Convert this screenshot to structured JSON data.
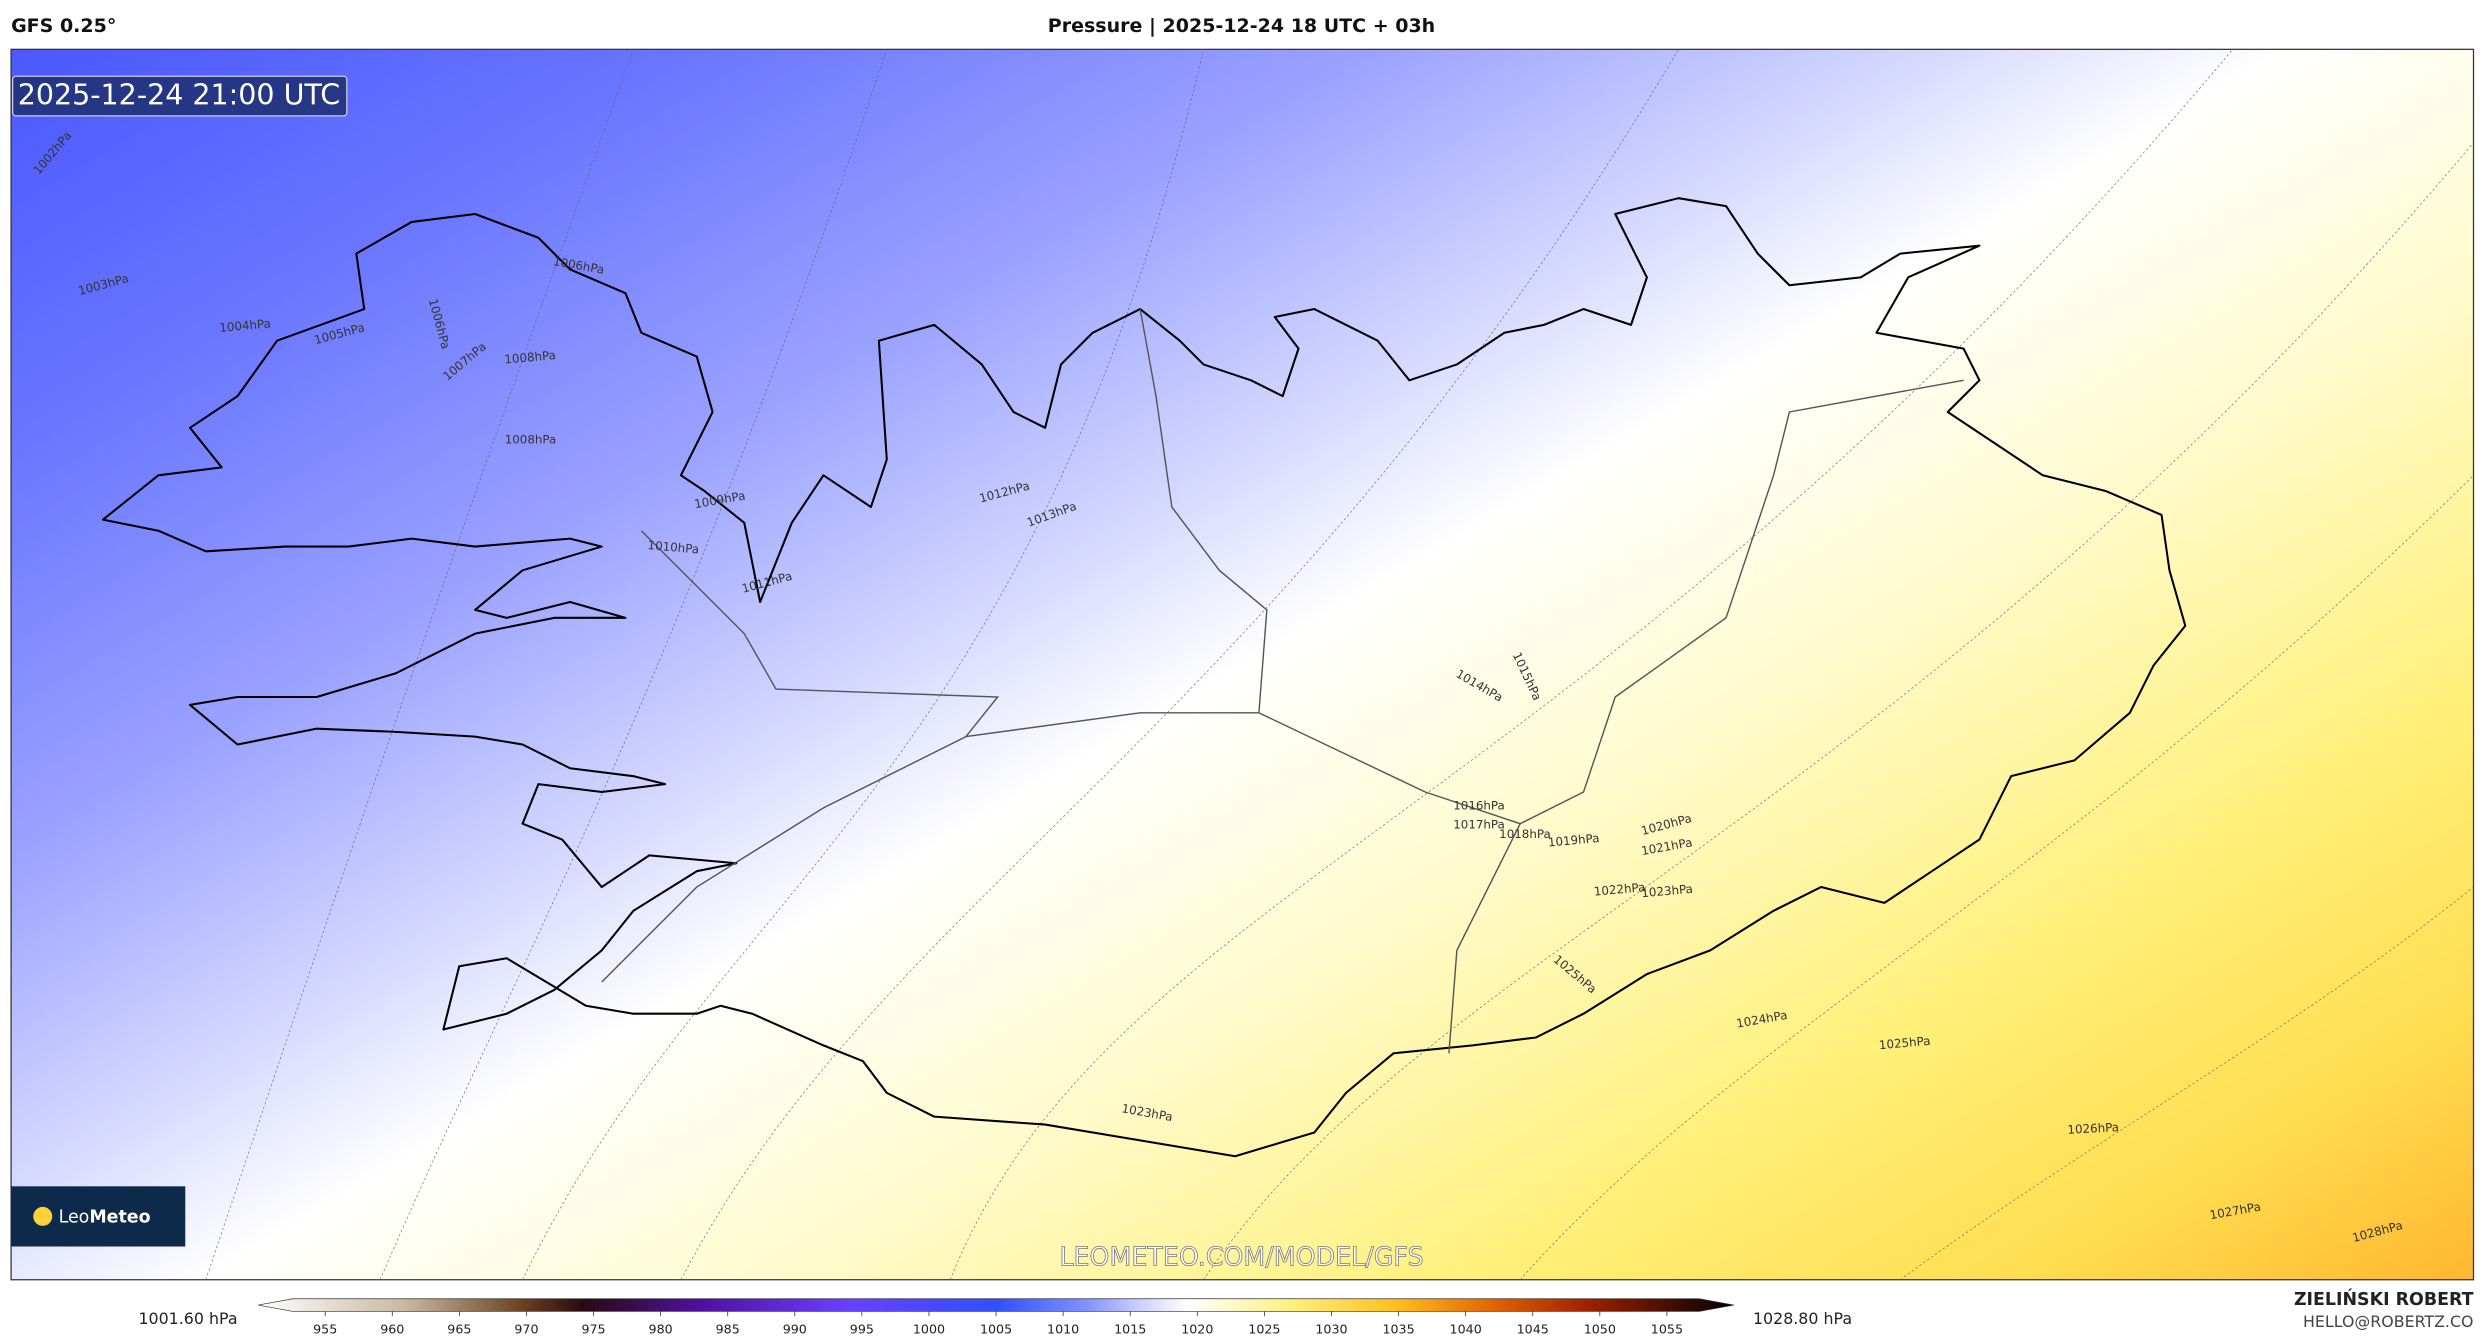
{
  "header": {
    "left": "GFS 0.25°",
    "title": "Pressure | 2025-12-24 18 UTC + 03h"
  },
  "map": {
    "valid_time": "2025-12-24 21:00 UTC",
    "contour_labels": [
      "1002hPa",
      "1003hPa",
      "1004hPa",
      "1005hPa",
      "1006hPa",
      "1006hPa",
      "1007hPa",
      "1008hPa",
      "1008hPa",
      "1009hPa",
      "1010hPa",
      "1011hPa",
      "1012hPa",
      "1013hPa",
      "1014hPa",
      "1015hPa",
      "1016hPa",
      "1017hPa",
      "1018hPa",
      "1019hPa",
      "1020hPa",
      "1021hPa",
      "1022hPa",
      "1023hPa",
      "1025hPa",
      "1024hPa",
      "1025hPa",
      "1023hPa",
      "1026hPa",
      "1027hPa",
      "1028hPa"
    ],
    "watermark": "LEOMETEO.COM/MODEL/GFS"
  },
  "logo": {
    "leo": "Leo",
    "meteo": "Meteo"
  },
  "colorbar": {
    "min_label": "1001.60 hPa",
    "max_label": "1028.80 hPa",
    "range": [
      950,
      1060
    ],
    "ticks": [
      955,
      960,
      965,
      970,
      975,
      980,
      985,
      990,
      995,
      1000,
      1005,
      1010,
      1015,
      1020,
      1025,
      1030,
      1035,
      1040,
      1045,
      1050,
      1055
    ]
  },
  "footer": {
    "author": "ZIELIŃSKI ROBERT",
    "email": "HELLO@ROBERTZ.CO"
  }
}
